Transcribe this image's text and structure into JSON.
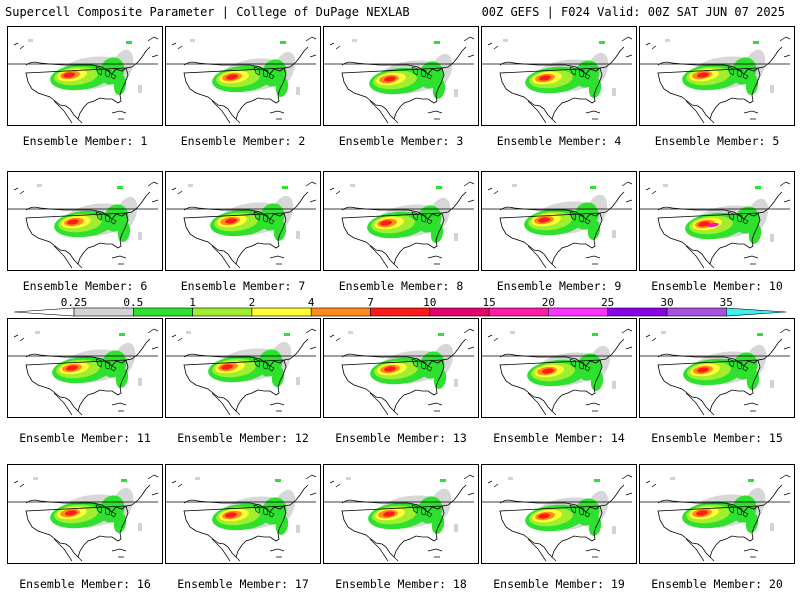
{
  "header": {
    "title_left": "Supercell Composite Parameter | College of DuPage NEXLAB",
    "title_right": "00Z GEFS | F024 Valid: 00Z SAT JUN 07 2025"
  },
  "panels": [
    {
      "label": "Ensemble Member: 1"
    },
    {
      "label": "Ensemble Member: 2"
    },
    {
      "label": "Ensemble Member: 3"
    },
    {
      "label": "Ensemble Member: 4"
    },
    {
      "label": "Ensemble Member: 5"
    },
    {
      "label": "Ensemble Member: 6"
    },
    {
      "label": "Ensemble Member: 7"
    },
    {
      "label": "Ensemble Member: 8"
    },
    {
      "label": "Ensemble Member: 9"
    },
    {
      "label": "Ensemble Member: 10"
    },
    {
      "label": "Ensemble Member: 11"
    },
    {
      "label": "Ensemble Member: 12"
    },
    {
      "label": "Ensemble Member: 13"
    },
    {
      "label": "Ensemble Member: 14"
    },
    {
      "label": "Ensemble Member: 15"
    },
    {
      "label": "Ensemble Member: 16"
    },
    {
      "label": "Ensemble Member: 17"
    },
    {
      "label": "Ensemble Member: 18"
    },
    {
      "label": "Ensemble Member: 19"
    },
    {
      "label": "Ensemble Member: 20"
    }
  ],
  "colorbar": {
    "labels": [
      "0.25",
      "0.5",
      "1",
      "2",
      "4",
      "7",
      "10",
      "15",
      "20",
      "25",
      "30",
      "35"
    ],
    "colors": [
      "#d3d3d3",
      "#2ee12e",
      "#a0ee2e",
      "#ffff33",
      "#ff8c1a",
      "#ff1a1a",
      "#e6006e",
      "#ff1aa8",
      "#ff33ff",
      "#8a00e6",
      "#a850e0",
      "#40f0f0"
    ]
  }
}
